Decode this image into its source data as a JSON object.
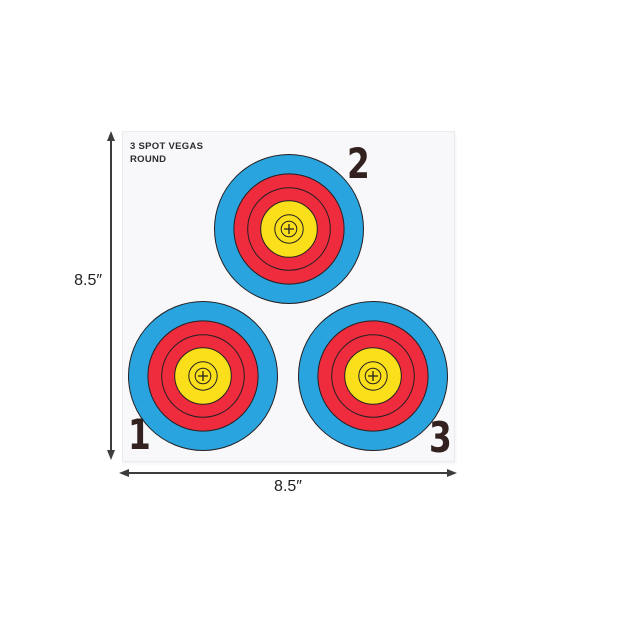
{
  "paper": {
    "title_line1": "3 SPOT VEGAS",
    "title_line2": "ROUND"
  },
  "spots": [
    {
      "label": "2",
      "position": "top-center"
    },
    {
      "label": "1",
      "position": "bottom-left"
    },
    {
      "label": "3",
      "position": "bottom-right"
    }
  ],
  "dimensions": {
    "height_label": "8.5″",
    "width_label": "8.5″"
  },
  "colors": {
    "blue": "#2aa4de",
    "red": "#ee2c3e",
    "yellow": "#fbdf1b",
    "ring_line": "#242021",
    "number": "#32211e",
    "dimension": "#3d3d3d",
    "paper": "#f8f7fa"
  },
  "target_rings": [
    {
      "name": "blue-outer",
      "ratio": 1.0,
      "fill": "blue"
    },
    {
      "name": "red-outer",
      "ratio": 0.74,
      "fill": "red"
    },
    {
      "name": "red-divider",
      "ratio": 0.555,
      "fill": null
    },
    {
      "name": "yellow-center",
      "ratio": 0.38,
      "fill": "yellow"
    },
    {
      "name": "ten-ring",
      "ratio": 0.19,
      "fill": null
    },
    {
      "name": "x-ring",
      "ratio": 0.105,
      "fill": null
    }
  ]
}
